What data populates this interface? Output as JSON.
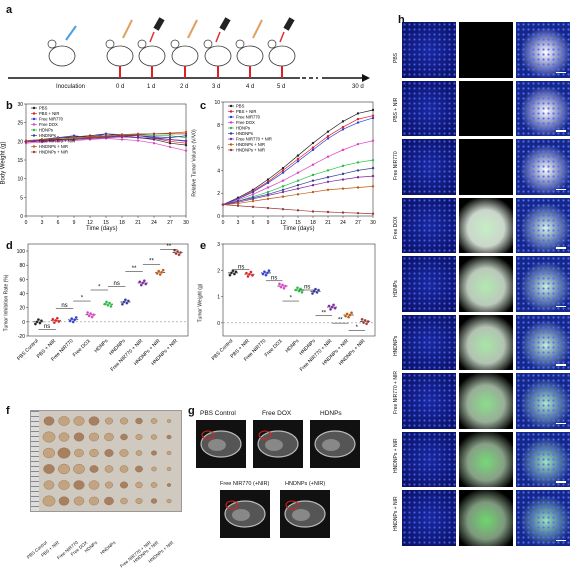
{
  "panels": {
    "a": {
      "letter": "a",
      "timeline": [
        "Inoculation",
        "0 d",
        "1 d",
        "2 d",
        "3 d",
        "4 d",
        "5 d",
        "30 d"
      ]
    },
    "b": {
      "letter": "b",
      "ylabel": "Body Weight (g)",
      "xlabel": "Time (days)"
    },
    "c": {
      "letter": "c",
      "ylabel": "Relative Tumor Volume (V/V0)",
      "xlabel": "Time (days)"
    },
    "d": {
      "letter": "d",
      "ylabel": "Tumor Inhibition Rate (%)"
    },
    "e": {
      "letter": "e",
      "ylabel": "Tumor Weight (g)"
    },
    "f": {
      "letter": "f",
      "labels": [
        "PBS Control",
        "PBS + NIR",
        "Free NIR770",
        "Free DOX",
        "HDNPs",
        "HNDNPs",
        "Free NIR770 + NIR",
        "HNDNPs + NIR",
        "HNDNPs + NIR"
      ]
    },
    "g": {
      "letter": "g",
      "labels": [
        "PBS Control",
        "Free DOX",
        "HDNPs",
        "Free NIR770 (+NIR)",
        "HNDNPs (+NIR)"
      ]
    },
    "h": {
      "letter": "h",
      "rows": [
        "PBS",
        "PBS + NIR",
        "Free NIR770",
        "Free DOX",
        "HDNPs",
        "HNDNPs",
        "Free NIR770 + NIR",
        "HNDNPs + NIR",
        "HNDNPs + NIR"
      ]
    }
  },
  "group_names": [
    "PBS Control",
    "PBS + NIR",
    "Free NIR770",
    "Free DOX",
    "HDNPs",
    "HNDNPs",
    "Free NIR770 + NIR",
    "HNDNPs + NIR",
    "HNDNPs + NIR"
  ],
  "legend_c": [
    "PBS",
    "PBS + NIR",
    "Free NIR770",
    "Free DOX",
    "HDNPs",
    "HNDNPs",
    "Free NIR770 + NIR",
    "HNDNPs + NIR",
    "HNDNPs + NIR"
  ],
  "colors": [
    "#222222",
    "#e02020",
    "#2a3bd6",
    "#e040c8",
    "#22c040",
    "#3a3a9a",
    "#7a2aa0",
    "#c05a10",
    "#9a3a3a"
  ],
  "sig": {
    "ns": "ns",
    "star": "*",
    "dstar": "**"
  },
  "chart_data": [
    {
      "type": "line",
      "id": "b",
      "xlabel": "Time (days)",
      "ylabel": "Body Weight (g)",
      "x": [
        0,
        3,
        6,
        9,
        12,
        15,
        18,
        21,
        24,
        27,
        30
      ],
      "xlim": [
        0,
        30
      ],
      "ylim": [
        0,
        30
      ],
      "xticks": [
        0,
        3,
        6,
        9,
        12,
        15,
        18,
        21,
        24,
        27,
        30
      ],
      "yticks": [
        0,
        5,
        10,
        15,
        20,
        25,
        30
      ],
      "series": [
        {
          "name": "PBS",
          "values": [
            20,
            20.5,
            21,
            21.2,
            21.5,
            22,
            21.5,
            21,
            20.5,
            19.5,
            19
          ]
        },
        {
          "name": "PBS + NIR",
          "values": [
            20,
            20.3,
            20.8,
            21,
            21.3,
            21.5,
            21.2,
            21,
            20.8,
            20,
            19.5
          ]
        },
        {
          "name": "Free NIR770",
          "values": [
            20,
            20.5,
            21,
            21.5,
            21,
            22,
            21.8,
            21.5,
            21,
            20.5,
            20
          ]
        },
        {
          "name": "Free DOX",
          "values": [
            19.5,
            19.8,
            20,
            20.2,
            20.5,
            20.8,
            20.5,
            20.2,
            19.5,
            18.5,
            17.5
          ]
        },
        {
          "name": "HDNPs",
          "values": [
            20,
            20.2,
            20.5,
            20.8,
            21,
            21.2,
            21.5,
            21.8,
            21.5,
            21.5,
            21
          ]
        },
        {
          "name": "HNDNPs",
          "values": [
            20,
            20.3,
            20.5,
            20.5,
            20.8,
            21,
            21.5,
            21.5,
            21.2,
            21,
            21.5
          ]
        },
        {
          "name": "Free NIR770 + NIR",
          "values": [
            19.8,
            20,
            20.3,
            20.5,
            20.8,
            21,
            21.2,
            21,
            20.8,
            20.5,
            20.2
          ]
        },
        {
          "name": "HNDNPs + NIR",
          "values": [
            20.2,
            20.5,
            20.8,
            21,
            21.2,
            21.5,
            21.8,
            22,
            22,
            22.2,
            22.5
          ]
        },
        {
          "name": "HNDNPs + NIR",
          "values": [
            20,
            20.2,
            20.4,
            20.6,
            21,
            21.3,
            21.5,
            21.8,
            22,
            22,
            22
          ]
        }
      ]
    },
    {
      "type": "line",
      "id": "c",
      "xlabel": "Time (days)",
      "ylabel": "Relative Tumor Volume (V/V0)",
      "x": [
        0,
        3,
        6,
        9,
        12,
        15,
        18,
        21,
        24,
        27,
        30
      ],
      "xlim": [
        0,
        30
      ],
      "ylim": [
        0,
        10
      ],
      "xticks": [
        0,
        3,
        6,
        9,
        12,
        15,
        18,
        21,
        24,
        27,
        30
      ],
      "yticks": [
        0,
        2,
        4,
        6,
        8,
        10
      ],
      "series": [
        {
          "name": "PBS",
          "values": [
            1,
            1.6,
            2.3,
            3.2,
            4.2,
            5.3,
            6.4,
            7.4,
            8.3,
            9,
            9.3
          ]
        },
        {
          "name": "PBS + NIR",
          "values": [
            1,
            1.5,
            2.2,
            3,
            4,
            5,
            6,
            7,
            7.8,
            8.5,
            8.8
          ]
        },
        {
          "name": "Free NIR770",
          "values": [
            1,
            1.5,
            2.1,
            2.9,
            3.8,
            4.8,
            5.8,
            6.8,
            7.6,
            8.2,
            8.6
          ]
        },
        {
          "name": "Free DOX",
          "values": [
            1,
            1.4,
            1.9,
            2.5,
            3.1,
            3.8,
            4.5,
            5.2,
            5.8,
            6.3,
            6.6
          ]
        },
        {
          "name": "HDNPs",
          "values": [
            1,
            1.3,
            1.7,
            2.1,
            2.6,
            3.1,
            3.6,
            4,
            4.4,
            4.7,
            4.9
          ]
        },
        {
          "name": "HNDNPs",
          "values": [
            1,
            1.3,
            1.6,
            1.9,
            2.3,
            2.7,
            3.1,
            3.4,
            3.7,
            4,
            4.2
          ]
        },
        {
          "name": "Free NIR770 + NIR",
          "values": [
            1,
            1.2,
            1.5,
            1.8,
            2.1,
            2.4,
            2.7,
            3,
            3.2,
            3.4,
            3.5
          ]
        },
        {
          "name": "HNDNPs + NIR",
          "values": [
            1,
            1.1,
            1.3,
            1.5,
            1.7,
            1.9,
            2.1,
            2.3,
            2.4,
            2.5,
            2.6
          ]
        },
        {
          "name": "HNDNPs + NIR",
          "values": [
            1,
            0.9,
            0.8,
            0.7,
            0.6,
            0.5,
            0.4,
            0.35,
            0.3,
            0.25,
            0.2
          ]
        }
      ]
    },
    {
      "type": "scatter",
      "id": "d",
      "ylabel": "Tumor Inhibition Rate (%)",
      "categories": [
        "PBS Control",
        "PBS + NIR",
        "Free NIR770",
        "Free DOX",
        "HDNPs",
        "HNDNPs",
        "Free NIR770 + NIR",
        "HNDNPs + NIR",
        "HNDNPs + NIR"
      ],
      "ylim": [
        -20,
        110
      ],
      "yticks": [
        -20,
        0,
        20,
        40,
        60,
        80,
        100
      ],
      "values": [
        0,
        2,
        3,
        10,
        25,
        28,
        55,
        70,
        98
      ]
    },
    {
      "type": "scatter",
      "id": "e",
      "ylabel": "Tumor Weight (g)",
      "categories": [
        "PBS Control",
        "PBS + NIR",
        "Free NIR770",
        "Free DOX",
        "HDNPs",
        "HNDNPs",
        "Free NIR770 + NIR",
        "HNDNPs + NIR",
        "HNDNPs + NIR"
      ],
      "ylim": [
        -0.5,
        3
      ],
      "yticks": [
        0,
        1,
        2,
        3
      ],
      "values": [
        1.9,
        1.85,
        1.9,
        1.4,
        1.25,
        1.2,
        0.6,
        0.3,
        0.05
      ]
    }
  ]
}
